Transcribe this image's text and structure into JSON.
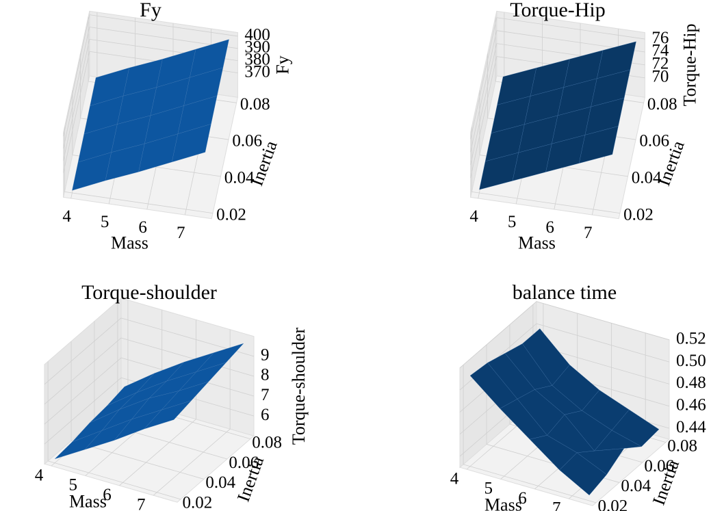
{
  "chart_data": [
    {
      "type": "surface",
      "title": "Fy",
      "xlabel": "Mass",
      "ylabel": "Inertia",
      "zlabel": "Fy",
      "color": "#0d56a0",
      "x": [
        4,
        4.875,
        5.75,
        6.625,
        7.5
      ],
      "y": [
        0.02,
        0.035,
        0.05,
        0.065,
        0.08
      ],
      "z": [
        [
          352,
          364,
          375,
          387,
          399
        ],
        [
          352.5,
          364.5,
          375.5,
          387.5,
          399.5
        ],
        [
          353,
          365,
          376,
          388,
          400
        ],
        [
          353.5,
          365.5,
          376.5,
          388.5,
          400.5
        ],
        [
          354,
          366,
          377,
          389,
          401
        ]
      ],
      "xlim": [
        3.8,
        7.7
      ],
      "ylim": [
        0.017,
        0.083
      ],
      "zlim": [
        350,
        403
      ],
      "xticks": [
        4,
        5,
        6,
        7
      ],
      "yticks": [
        0.02,
        0.04,
        0.06,
        0.08
      ],
      "zticks": [
        370,
        380,
        390,
        400
      ]
    },
    {
      "type": "surface",
      "title": "Torque-Hip",
      "xlabel": "Mass",
      "ylabel": "Inertia",
      "zlabel": "Torque-Hip",
      "color": "#0a3865",
      "x": [
        4,
        4.875,
        5.75,
        6.625,
        7.5
      ],
      "y": [
        0.02,
        0.035,
        0.05,
        0.065,
        0.08
      ],
      "z": [
        [
          67.5,
          69.6,
          71.7,
          73.8,
          75.9
        ],
        [
          67.6,
          69.7,
          71.8,
          73.9,
          76
        ],
        [
          67.7,
          69.8,
          71.9,
          74,
          76.1
        ],
        [
          67.8,
          69.9,
          72,
          74.1,
          76.2
        ],
        [
          67.9,
          70,
          72.1,
          74.2,
          76.3
        ]
      ],
      "xlim": [
        3.8,
        7.7
      ],
      "ylim": [
        0.017,
        0.083
      ],
      "zlim": [
        67,
        77
      ],
      "xticks": [
        4,
        5,
        6,
        7
      ],
      "yticks": [
        0.02,
        0.04,
        0.06,
        0.08
      ],
      "zticks": [
        70,
        72,
        74,
        76
      ]
    },
    {
      "type": "surface",
      "title": "Torque-shoulder",
      "xlabel": "Mass",
      "ylabel": "Inertia",
      "zlabel": "Torque-shoulder",
      "color": "#0d56a0",
      "x": [
        4,
        4.875,
        5.75,
        6.625,
        7.5
      ],
      "y": [
        0.02,
        0.035,
        0.05,
        0.065,
        0.08
      ],
      "z": [
        [
          5.2,
          6.1,
          7.0,
          8.0,
          8.9
        ],
        [
          5.3,
          6.3,
          7.3,
          8.2,
          9.1
        ],
        [
          5.5,
          6.6,
          7.6,
          8.4,
          9.3
        ],
        [
          5.6,
          6.7,
          7.7,
          8.6,
          9.5
        ],
        [
          5.8,
          6.9,
          7.9,
          8.8,
          9.7
        ]
      ],
      "xlim": [
        3.8,
        7.7
      ],
      "ylim": [
        0.017,
        0.083
      ],
      "zlim": [
        5,
        10
      ],
      "xticks": [
        4,
        5,
        6,
        7
      ],
      "yticks": [
        0.02,
        0.04,
        0.06,
        0.08
      ],
      "zticks": [
        6,
        7,
        8,
        9
      ]
    },
    {
      "type": "surface",
      "title": "balance time",
      "xlabel": "Mass",
      "ylabel": "Inertia",
      "zlabel": "",
      "color": "#0a3d70",
      "x": [
        4,
        4.875,
        5.75,
        6.625,
        7.5
      ],
      "y": [
        0.02,
        0.035,
        0.05,
        0.065,
        0.08
      ],
      "z": [
        [
          0.512,
          0.49,
          0.47,
          0.45,
          0.435
        ],
        [
          0.51,
          0.485,
          0.46,
          0.452,
          0.44
        ],
        [
          0.505,
          0.48,
          0.465,
          0.44,
          0.45
        ],
        [
          0.5,
          0.47,
          0.455,
          0.445,
          0.438
        ],
        [
          0.5,
          0.475,
          0.46,
          0.45,
          0.44
        ]
      ],
      "xlim": [
        3.8,
        7.7
      ],
      "ylim": [
        0.017,
        0.083
      ],
      "zlim": [
        0.43,
        0.52
      ],
      "xticks": [
        4,
        5,
        6,
        7
      ],
      "yticks": [
        0.02,
        0.04,
        0.06,
        0.08
      ],
      "zticks": [
        0.44,
        0.46,
        0.48,
        {
          "value": 0.5,
          "label": "0.50"
        },
        0.52
      ]
    }
  ]
}
